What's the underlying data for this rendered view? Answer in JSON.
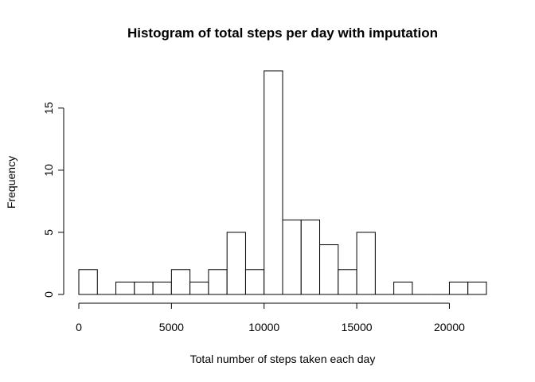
{
  "chart_data": {
    "type": "bar",
    "title": "Histogram of total steps per day with imputation",
    "xlabel": "Total number of steps taken each day",
    "ylabel": "Frequency",
    "bin_width": 1000,
    "bins": [
      {
        "start": 0,
        "end": 1000,
        "count": 2
      },
      {
        "start": 1000,
        "end": 2000,
        "count": 0
      },
      {
        "start": 2000,
        "end": 3000,
        "count": 1
      },
      {
        "start": 3000,
        "end": 4000,
        "count": 1
      },
      {
        "start": 4000,
        "end": 5000,
        "count": 1
      },
      {
        "start": 5000,
        "end": 6000,
        "count": 2
      },
      {
        "start": 6000,
        "end": 7000,
        "count": 1
      },
      {
        "start": 7000,
        "end": 8000,
        "count": 2
      },
      {
        "start": 8000,
        "end": 9000,
        "count": 5
      },
      {
        "start": 9000,
        "end": 10000,
        "count": 2
      },
      {
        "start": 10000,
        "end": 11000,
        "count": 18
      },
      {
        "start": 11000,
        "end": 12000,
        "count": 6
      },
      {
        "start": 12000,
        "end": 13000,
        "count": 6
      },
      {
        "start": 13000,
        "end": 14000,
        "count": 4
      },
      {
        "start": 14000,
        "end": 15000,
        "count": 2
      },
      {
        "start": 15000,
        "end": 16000,
        "count": 5
      },
      {
        "start": 16000,
        "end": 17000,
        "count": 0
      },
      {
        "start": 17000,
        "end": 18000,
        "count": 1
      },
      {
        "start": 18000,
        "end": 19000,
        "count": 0
      },
      {
        "start": 19000,
        "end": 20000,
        "count": 0
      },
      {
        "start": 20000,
        "end": 21000,
        "count": 1
      },
      {
        "start": 21000,
        "end": 22000,
        "count": 1
      }
    ],
    "xlim": [
      0,
      22000
    ],
    "ylim": [
      0,
      18
    ],
    "x_ticks": [
      0,
      5000,
      10000,
      15000,
      20000
    ],
    "y_ticks": [
      0,
      5,
      10,
      15
    ],
    "grid": false,
    "legend": "none"
  }
}
